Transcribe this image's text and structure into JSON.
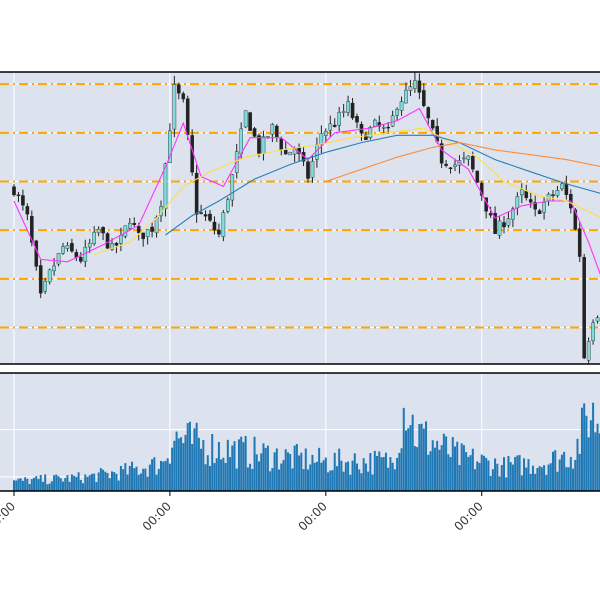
{
  "chart_data": [
    {
      "type": "candlestick",
      "panel": "price",
      "grid": true,
      "background": "#dde3ee",
      "horizontal_levels": [
        1.0,
        0.8,
        0.6,
        0.4,
        0.2,
        0.0
      ],
      "level_style": {
        "color": "#ffa500",
        "dash": "dash-dot"
      },
      "ylim": [
        -0.15,
        1.05
      ],
      "close_path": [
        [
          0,
          0.57
        ],
        [
          3,
          0.45
        ],
        [
          6,
          0.12
        ],
        [
          8,
          0.22
        ],
        [
          11,
          0.33
        ],
        [
          15,
          0.28
        ],
        [
          19,
          0.4
        ],
        [
          22,
          0.32
        ],
        [
          24,
          0.36
        ],
        [
          26,
          0.45
        ],
        [
          28,
          0.37
        ],
        [
          31,
          0.41
        ],
        [
          33,
          0.52
        ],
        [
          36,
          0.98
        ],
        [
          38,
          0.92
        ],
        [
          41,
          0.48
        ],
        [
          43,
          0.45
        ],
        [
          46,
          0.38
        ],
        [
          49,
          0.62
        ],
        [
          52,
          0.88
        ],
        [
          55,
          0.73
        ],
        [
          58,
          0.82
        ],
        [
          61,
          0.71
        ],
        [
          63,
          0.74
        ],
        [
          66,
          0.62
        ],
        [
          69,
          0.8
        ],
        [
          72,
          0.84
        ],
        [
          75,
          0.91
        ],
        [
          78,
          0.78
        ],
        [
          81,
          0.83
        ],
        [
          84,
          0.8
        ],
        [
          86,
          0.92
        ],
        [
          88,
          0.96
        ],
        [
          90,
          1.0
        ],
        [
          93,
          0.85
        ],
        [
          96,
          0.69
        ],
        [
          99,
          0.67
        ],
        [
          102,
          0.69
        ],
        [
          105,
          0.55
        ],
        [
          108,
          0.39
        ],
        [
          111,
          0.46
        ],
        [
          114,
          0.55
        ],
        [
          117,
          0.47
        ],
        [
          120,
          0.53
        ],
        [
          123,
          0.58
        ],
        [
          125,
          0.5
        ],
        [
          127,
          0.3
        ],
        [
          128,
          -0.12
        ],
        [
          130,
          0.04
        ],
        [
          132,
          0.08
        ]
      ],
      "moving_averages": [
        {
          "color": "#ff33ff",
          "values": [
            [
              0,
              0.52
            ],
            [
              6,
              0.28
            ],
            [
              12,
              0.27
            ],
            [
              20,
              0.34
            ],
            [
              28,
              0.42
            ],
            [
              34,
              0.66
            ],
            [
              38,
              0.84
            ],
            [
              42,
              0.62
            ],
            [
              47,
              0.58
            ],
            [
              53,
              0.78
            ],
            [
              60,
              0.78
            ],
            [
              66,
              0.69
            ],
            [
              72,
              0.8
            ],
            [
              80,
              0.82
            ],
            [
              86,
              0.85
            ],
            [
              91,
              0.9
            ],
            [
              96,
              0.73
            ],
            [
              102,
              0.65
            ],
            [
              108,
              0.45
            ],
            [
              114,
              0.5
            ],
            [
              120,
              0.52
            ],
            [
              125,
              0.52
            ],
            [
              129,
              0.35
            ],
            [
              132,
              0.2
            ]
          ]
        },
        {
          "color": "#ffdd44",
          "values": [
            [
              18,
              0.3
            ],
            [
              26,
              0.35
            ],
            [
              32,
              0.45
            ],
            [
              38,
              0.58
            ],
            [
              44,
              0.64
            ],
            [
              52,
              0.7
            ],
            [
              60,
              0.73
            ],
            [
              68,
              0.75
            ],
            [
              76,
              0.78
            ],
            [
              84,
              0.8
            ],
            [
              92,
              0.82
            ],
            [
              98,
              0.76
            ],
            [
              104,
              0.7
            ],
            [
              110,
              0.6
            ],
            [
              118,
              0.54
            ],
            [
              124,
              0.52
            ],
            [
              132,
              0.45
            ]
          ]
        },
        {
          "color": "#2a7fb8",
          "values": [
            [
              34,
              0.38
            ],
            [
              40,
              0.46
            ],
            [
              46,
              0.52
            ],
            [
              54,
              0.61
            ],
            [
              62,
              0.67
            ],
            [
              70,
              0.72
            ],
            [
              78,
              0.76
            ],
            [
              86,
              0.79
            ],
            [
              94,
              0.79
            ],
            [
              100,
              0.76
            ],
            [
              108,
              0.69
            ],
            [
              116,
              0.64
            ],
            [
              124,
              0.59
            ],
            [
              132,
              0.55
            ]
          ]
        },
        {
          "color": "#ff8c3a",
          "values": [
            [
              70,
              0.6
            ],
            [
              78,
              0.65
            ],
            [
              86,
              0.7
            ],
            [
              94,
              0.74
            ],
            [
              100,
              0.76
            ],
            [
              108,
              0.73
            ],
            [
              116,
              0.71
            ],
            [
              124,
              0.69
            ],
            [
              132,
              0.66
            ]
          ]
        }
      ]
    },
    {
      "type": "bar",
      "panel": "volume",
      "grid": true,
      "color": "#1f77b4",
      "ylim": [
        0,
        1
      ],
      "volume_profile": [
        [
          0,
          0.1
        ],
        [
          8,
          0.12
        ],
        [
          16,
          0.14
        ],
        [
          25,
          0.2
        ],
        [
          33,
          0.28
        ],
        [
          36,
          0.55
        ],
        [
          44,
          0.45
        ],
        [
          52,
          0.4
        ],
        [
          60,
          0.35
        ],
        [
          70,
          0.3
        ],
        [
          85,
          0.3
        ],
        [
          88,
          0.95
        ],
        [
          90,
          0.6
        ],
        [
          100,
          0.35
        ],
        [
          110,
          0.25
        ],
        [
          120,
          0.3
        ],
        [
          126,
          0.4
        ],
        [
          129,
          0.8
        ],
        [
          132,
          0.7
        ]
      ]
    }
  ],
  "x_ticks": [
    {
      "label": "00:00",
      "index": 0
    },
    {
      "label": "00:00",
      "index": 35
    },
    {
      "label": "00:00",
      "index": 70
    },
    {
      "label": "00:00",
      "index": 105
    }
  ],
  "colors": {
    "up_body": "#7fdcdc",
    "down_body": "#222222",
    "wick": "#222222",
    "grid": "#ffffff",
    "axis": "#000000"
  }
}
